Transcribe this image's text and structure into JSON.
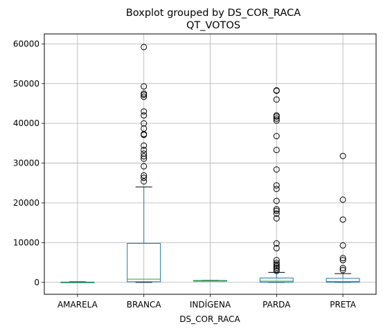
{
  "chart_data": {
    "type": "boxplot",
    "suptitle": "Boxplot grouped by DS_COR_RACA",
    "title": "QT_VOTOS",
    "xlabel": "DS_COR_RACA",
    "ylabel": "",
    "ylim": [
      -3000,
      62500
    ],
    "yticks": [
      0,
      10000,
      20000,
      30000,
      40000,
      50000,
      60000
    ],
    "grid": true,
    "box_color": "#1f77b4",
    "median_color": "#2ca02c",
    "categories": [
      "AMARELA",
      "BRANCA",
      "INDÍGENA",
      "PARDA",
      "PRETA"
    ],
    "boxes": [
      {
        "name": "AMARELA",
        "whisker_low": 0,
        "q1": 10,
        "median": 40,
        "q3": 80,
        "whisker_high": 150,
        "outliers": []
      },
      {
        "name": "BRANCA",
        "whisker_low": 0,
        "q1": 150,
        "median": 800,
        "q3": 9800,
        "whisker_high": 24000,
        "outliers": [
          25400,
          26300,
          26900,
          29200,
          31100,
          31700,
          32400,
          33300,
          34400,
          37100,
          37300,
          38700,
          40000,
          42000,
          43000,
          46700,
          47200,
          47500,
          49300,
          59200
        ]
      },
      {
        "name": "INDÍGENA",
        "whisker_low": 330,
        "q1": 350,
        "median": 420,
        "q3": 470,
        "whisker_high": 500,
        "outliers": []
      },
      {
        "name": "PARDA",
        "whisker_low": 0,
        "q1": 60,
        "median": 300,
        "q3": 1100,
        "whisker_high": 2500,
        "outliers": [
          2900,
          3300,
          3700,
          4100,
          4500,
          4900,
          5600,
          8600,
          9800,
          16100,
          17300,
          18000,
          18400,
          20500,
          23500,
          24400,
          28400,
          33300,
          36800,
          40700,
          41200,
          41700,
          42000,
          46000,
          48200,
          48300
        ]
      },
      {
        "name": "PRETA",
        "whisker_low": 0,
        "q1": 50,
        "median": 250,
        "q3": 1000,
        "whisker_high": 2200,
        "outliers": [
          3100,
          3600,
          5600,
          6100,
          9300,
          15800,
          20800,
          31800
        ]
      }
    ]
  }
}
